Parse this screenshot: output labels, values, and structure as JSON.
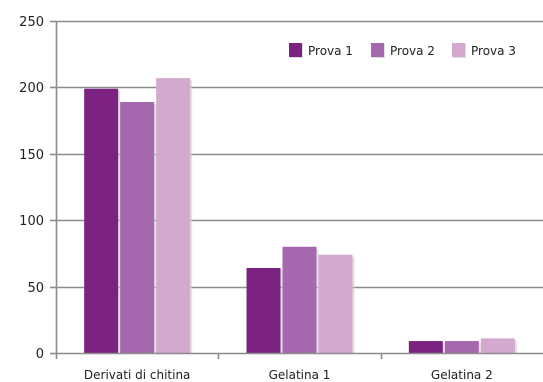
{
  "chart_data": {
    "type": "bar",
    "categories": [
      "Derivati  di chitina",
      "Gelatina 1",
      "Gelatina 2"
    ],
    "series": [
      {
        "name": "Prova 1",
        "values": [
          199,
          64,
          9
        ],
        "color": "#7b2281"
      },
      {
        "name": "Prova 2",
        "values": [
          189,
          80,
          9
        ],
        "color": "#a567ad"
      },
      {
        "name": "Prova 3",
        "values": [
          207,
          74,
          11
        ],
        "color": "#d3a9ce"
      }
    ],
    "title": "",
    "xlabel": "",
    "ylabel": "",
    "ylim": [
      0,
      250
    ],
    "yticks": [
      0,
      50,
      100,
      150,
      200,
      250
    ],
    "grid": true,
    "legend": "top-right"
  }
}
